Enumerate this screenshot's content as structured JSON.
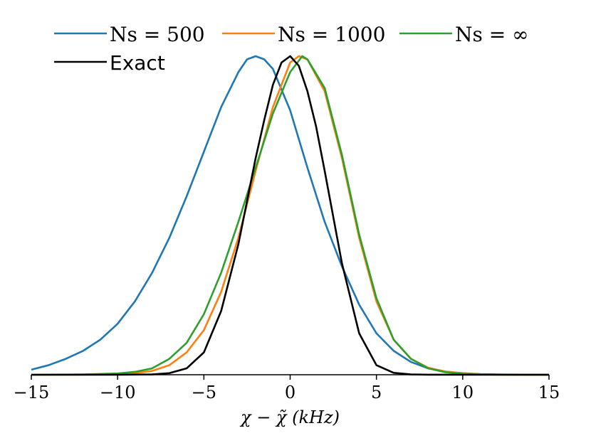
{
  "chart_data": {
    "type": "line",
    "title": "",
    "xlabel": "χ − χ̃ (kHz)",
    "ylabel": "",
    "xlim": [
      -15,
      15
    ],
    "ylim": [
      0,
      1.0
    ],
    "xticks": [
      -15,
      -10,
      -5,
      0,
      5,
      10,
      15
    ],
    "xtick_labels": [
      "−15",
      "−10",
      "−5",
      "0",
      "5",
      "10",
      "15"
    ],
    "grid": false,
    "legend_position": "top",
    "series": [
      {
        "name": "Ns = 500",
        "color": "#1f77b4",
        "x": [
          -15,
          -14,
          -13,
          -12,
          -11,
          -10,
          -9,
          -8,
          -7,
          -6,
          -5,
          -4,
          -3,
          -2.5,
          -2,
          -1.5,
          -1,
          0,
          1,
          2,
          3,
          4,
          5,
          6,
          7,
          8,
          9,
          10,
          11,
          12,
          13,
          14,
          15
        ],
        "y": [
          0.016,
          0.03,
          0.05,
          0.075,
          0.11,
          0.16,
          0.23,
          0.32,
          0.43,
          0.56,
          0.7,
          0.84,
          0.95,
          0.99,
          1.0,
          0.99,
          0.96,
          0.83,
          0.65,
          0.48,
          0.34,
          0.22,
          0.13,
          0.075,
          0.04,
          0.02,
          0.01,
          0.005,
          0.002,
          0.001,
          0.0005,
          0.0002,
          0.0001
        ]
      },
      {
        "name": "Ns = 1000",
        "color": "#ff7f0e",
        "x": [
          -15,
          -12,
          -10,
          -9,
          -8,
          -7,
          -6,
          -5,
          -4,
          -3,
          -2,
          -1,
          0,
          0.5,
          1,
          2,
          3,
          4,
          5,
          6,
          7,
          8,
          9,
          10,
          11,
          12,
          13,
          15
        ],
        "y": [
          0.0,
          0.0005,
          0.002,
          0.005,
          0.012,
          0.03,
          0.07,
          0.14,
          0.26,
          0.43,
          0.64,
          0.84,
          0.98,
          1.0,
          0.99,
          0.89,
          0.68,
          0.43,
          0.23,
          0.11,
          0.05,
          0.022,
          0.01,
          0.004,
          0.0015,
          0.0005,
          0.0002,
          0.0
        ]
      },
      {
        "name": "Ns = ∞",
        "color": "#2ca02c",
        "x": [
          -15,
          -12,
          -10,
          -9,
          -8,
          -7,
          -6,
          -5,
          -4,
          -3,
          -2,
          -1,
          0,
          0.7,
          1,
          2,
          3,
          4,
          5,
          6,
          7,
          8,
          9,
          10,
          11,
          12,
          13,
          15
        ],
        "y": [
          0.0,
          0.001,
          0.004,
          0.009,
          0.02,
          0.05,
          0.1,
          0.19,
          0.32,
          0.48,
          0.65,
          0.82,
          0.95,
          1.0,
          0.99,
          0.9,
          0.69,
          0.44,
          0.24,
          0.11,
          0.05,
          0.02,
          0.008,
          0.003,
          0.001,
          0.0004,
          0.0001,
          0.0
        ]
      },
      {
        "name": "Exact",
        "color": "#000000",
        "x": [
          -15,
          -10,
          -8,
          -7,
          -6,
          -5,
          -4,
          -3,
          -2,
          -1.5,
          -1,
          -0.5,
          0,
          0.5,
          1,
          1.5,
          2,
          3,
          4,
          5,
          6,
          7,
          8,
          10,
          15
        ],
        "y": [
          0.0,
          0.0,
          0.001,
          0.005,
          0.02,
          0.07,
          0.2,
          0.41,
          0.68,
          0.8,
          0.91,
          0.98,
          1.0,
          0.97,
          0.89,
          0.78,
          0.64,
          0.35,
          0.13,
          0.03,
          0.006,
          0.001,
          0.0002,
          0.0,
          0.0
        ]
      }
    ]
  }
}
